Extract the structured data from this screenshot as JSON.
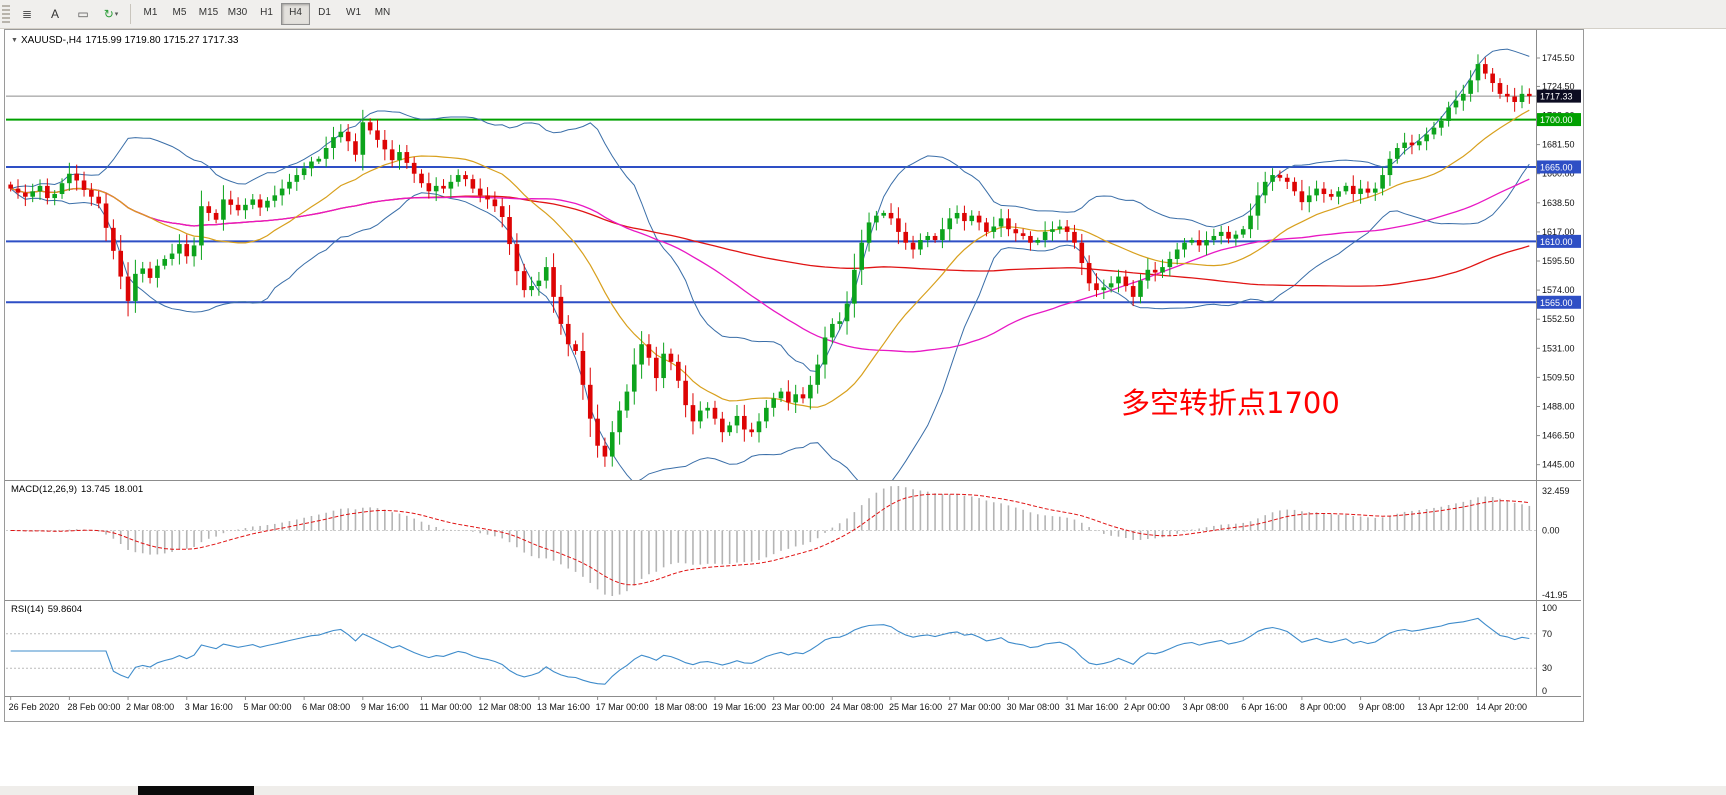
{
  "toolbar": {
    "tools": [
      {
        "name": "chart-list-icon",
        "glyph": "≣",
        "color": "#555555"
      },
      {
        "name": "cursor-tool-icon",
        "glyph": "A",
        "color": "#333333"
      },
      {
        "name": "box-tool-icon",
        "glyph": "▭",
        "color": "#555555"
      },
      {
        "name": "refresh-dropdown-icon",
        "glyph": "↻",
        "color": "#2e9e3a",
        "caret": "▾"
      }
    ],
    "timeframes": [
      {
        "label": "M1",
        "active": false
      },
      {
        "label": "M5",
        "active": false
      },
      {
        "label": "M15",
        "active": false
      },
      {
        "label": "M30",
        "active": false
      },
      {
        "label": "H1",
        "active": false
      },
      {
        "label": "H4",
        "active": true
      },
      {
        "label": "D1",
        "active": false
      },
      {
        "label": "W1",
        "active": false
      },
      {
        "label": "MN",
        "active": false
      }
    ]
  },
  "window": {
    "dropdown_glyph": "▼",
    "symbol_title": "XAUUSD-,H4",
    "ohlc": "1715.99 1719.80 1715.27 1717.33",
    "annotation": "多空转折点1700"
  },
  "chart_data": {
    "type": "candlestick",
    "symbol": "XAUUSD-",
    "timeframe": "H4",
    "title": "XAUUSD-,H4 1715.99 1719.80 1715.27 1717.33",
    "last_bar": {
      "open": 1715.99,
      "high": 1719.8,
      "low": 1715.27,
      "close": 1717.33
    },
    "first_open": 1652,
    "closes": [
      1649,
      1646,
      1643,
      1647,
      1651,
      1642,
      1645,
      1653,
      1660,
      1655,
      1648,
      1643,
      1638,
      1620,
      1603,
      1584,
      1566,
      1586,
      1590,
      1583,
      1592,
      1597,
      1601,
      1608,
      1599,
      1607,
      1636,
      1631,
      1626,
      1641,
      1637,
      1633,
      1637,
      1641,
      1635,
      1640,
      1644,
      1649,
      1654,
      1659,
      1664,
      1669,
      1671,
      1679,
      1687,
      1691,
      1684,
      1674,
      1698,
      1692,
      1685,
      1678,
      1670,
      1676,
      1668,
      1660,
      1653,
      1647,
      1651,
      1649,
      1654,
      1659,
      1656,
      1649,
      1644,
      1641,
      1636,
      1628,
      1608,
      1588,
      1574,
      1577,
      1581,
      1591,
      1569,
      1549,
      1534,
      1529,
      1504,
      1479,
      1459,
      1451,
      1469,
      1485,
      1499,
      1519,
      1534,
      1524,
      1509,
      1527,
      1521,
      1507,
      1489,
      1477,
      1485,
      1487,
      1479,
      1469,
      1474,
      1481,
      1471,
      1469,
      1477,
      1487,
      1494,
      1499,
      1491,
      1497,
      1494,
      1504,
      1519,
      1539,
      1549,
      1551,
      1564,
      1589,
      1609,
      1624,
      1629,
      1631,
      1627,
      1617,
      1609,
      1604,
      1611,
      1614,
      1611,
      1619,
      1627,
      1631,
      1625,
      1629,
      1624,
      1617,
      1621,
      1627,
      1619,
      1616,
      1614,
      1609,
      1611,
      1617,
      1619,
      1621,
      1617,
      1609,
      1594,
      1579,
      1574,
      1576,
      1579,
      1584,
      1577,
      1569,
      1581,
      1589,
      1587,
      1591,
      1597,
      1604,
      1609,
      1611,
      1607,
      1611,
      1614,
      1617,
      1612,
      1615,
      1619,
      1629,
      1644,
      1654,
      1659,
      1657,
      1654,
      1647,
      1639,
      1644,
      1649,
      1645,
      1643,
      1647,
      1651,
      1645,
      1649,
      1646,
      1649,
      1659,
      1671,
      1679,
      1683,
      1681,
      1684,
      1689,
      1694,
      1699,
      1709,
      1714,
      1719,
      1729,
      1741,
      1734,
      1727,
      1719,
      1717,
      1713,
      1719,
      1717.33
    ],
    "x_labels": [
      "26 Feb 2020",
      "28 Feb 00:00",
      "2 Mar 08:00",
      "3 Mar 16:00",
      "5 Mar 00:00",
      "6 Mar 08:00",
      "9 Mar 16:00",
      "11 Mar 00:00",
      "12 Mar 08:00",
      "13 Mar 16:00",
      "17 Mar 00:00",
      "18 Mar 08:00",
      "19 Mar 16:00",
      "23 Mar 00:00",
      "24 Mar 08:00",
      "25 Mar 16:00",
      "27 Mar 00:00",
      "30 Mar 08:00",
      "31 Mar 16:00",
      "2 Apr 00:00",
      "3 Apr 08:00",
      "6 Apr 16:00",
      "8 Apr 00:00",
      "9 Apr 08:00",
      "13 Apr 12:00",
      "14 Apr 20:00"
    ],
    "y_ticks": [
      "1745.50",
      "1724.50",
      "1703.00",
      "1681.50",
      "1660.00",
      "1638.50",
      "1617.00",
      "1595.50",
      "1574.00",
      "1552.50",
      "1531.00",
      "1509.50",
      "1488.00",
      "1466.50",
      "1445.00"
    ],
    "levels": [
      {
        "value": 1700.0,
        "label": "1700.00",
        "color": "#00A000"
      },
      {
        "value": 1665.0,
        "label": "1665.00",
        "color": "#2e4fc5"
      },
      {
        "value": 1610.0,
        "label": "1610.00",
        "color": "#2e4fc5"
      },
      {
        "value": 1565.0,
        "label": "1565.00",
        "color": "#2e4fc5"
      }
    ],
    "current_price": {
      "value": 1717.33,
      "label": "1717.33",
      "line_color": "#8c8c8c",
      "label_bg": "#0c0c22"
    },
    "overlays": {
      "bollinger": {
        "period": 20,
        "deviation": 2,
        "color": "#3a6ea8"
      },
      "ma20_color": "#d8a01d",
      "ma55": {
        "period": 55,
        "color": "#e818c4"
      },
      "ma120": {
        "period": 120,
        "color": "#e01414"
      }
    },
    "macd": {
      "title": "MACD(12,26,9)",
      "value_main": "13.745",
      "value_signal": "18.001",
      "scale": [
        "32.459",
        "0.00",
        "-41.95"
      ],
      "hist_color": "#b4b4b4",
      "signal_color": "#e01414"
    },
    "rsi": {
      "title": "RSI(14)",
      "value": "59.8604",
      "scale": [
        "100",
        "70",
        "30",
        "0"
      ],
      "levels": [
        70,
        30
      ],
      "color": "#3f8ccb"
    },
    "candle_up": "#0ca31c",
    "candle_down": "#dd0404"
  }
}
